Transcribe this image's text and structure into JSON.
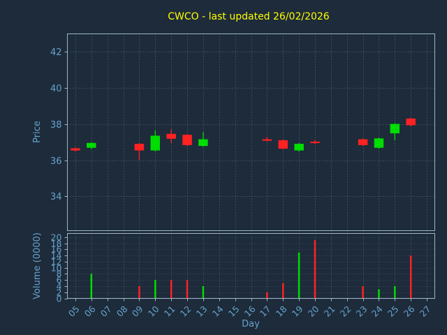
{
  "colors": {
    "background": "#1d2b3a",
    "title": "#ffff00",
    "tick_label": "#66a3cc",
    "axis_label": "#66a3cc",
    "spine": "#9fb6c9",
    "grid": "#8fa8bc",
    "up": "#00dd00",
    "down": "#ff2222"
  },
  "chart_data": {
    "type": "candlestick",
    "title": "CWCO - last updated 26/02/2026",
    "xlabel": "Day",
    "price_ylabel": "Price",
    "volume_ylabel": "Volume (0000)",
    "legend": "none",
    "grid": "dotted",
    "x_tick_labels": [
      "05",
      "06",
      "07",
      "08",
      "09",
      "10",
      "11",
      "12",
      "13",
      "14",
      "15",
      "16",
      "17",
      "18",
      "19",
      "20",
      "21",
      "22",
      "23",
      "24",
      "25",
      "26",
      "27"
    ],
    "x_range": [
      4.5,
      27.5
    ],
    "price_ticks": [
      34,
      36,
      38,
      40,
      42
    ],
    "price_range": [
      32.1,
      43.0
    ],
    "volume_ticks": [
      0,
      2,
      4,
      6,
      8,
      10,
      12,
      14,
      16,
      18,
      20
    ],
    "volume_range": [
      0,
      21.2
    ],
    "candles": [
      {
        "day": 5,
        "open": 36.65,
        "high": 36.72,
        "low": 36.5,
        "close": 36.55,
        "volume": 0
      },
      {
        "day": 6,
        "open": 36.7,
        "high": 37.0,
        "low": 36.62,
        "close": 36.95,
        "volume": 8
      },
      {
        "day": 9,
        "open": 36.9,
        "high": 36.95,
        "low": 36.0,
        "close": 36.55,
        "volume": 4
      },
      {
        "day": 10,
        "open": 36.55,
        "high": 37.65,
        "low": 36.5,
        "close": 37.35,
        "volume": 6
      },
      {
        "day": 11,
        "open": 37.45,
        "high": 37.7,
        "low": 36.95,
        "close": 37.2,
        "volume": 6
      },
      {
        "day": 12,
        "open": 37.4,
        "high": 37.45,
        "low": 36.8,
        "close": 36.85,
        "volume": 6
      },
      {
        "day": 13,
        "open": 36.8,
        "high": 37.55,
        "low": 36.75,
        "close": 37.15,
        "volume": 4
      },
      {
        "day": 17,
        "open": 37.15,
        "high": 37.3,
        "low": 37.05,
        "close": 37.1,
        "volume": 2
      },
      {
        "day": 18,
        "open": 37.1,
        "high": 37.15,
        "low": 36.6,
        "close": 36.65,
        "volume": 5
      },
      {
        "day": 19,
        "open": 36.55,
        "high": 36.95,
        "low": 36.5,
        "close": 36.9,
        "volume": 15
      },
      {
        "day": 20,
        "open": 37.02,
        "high": 37.12,
        "low": 36.9,
        "close": 36.98,
        "volume": 19
      },
      {
        "day": 23,
        "open": 37.15,
        "high": 37.2,
        "low": 36.8,
        "close": 36.85,
        "volume": 4
      },
      {
        "day": 24,
        "open": 36.7,
        "high": 37.25,
        "low": 36.65,
        "close": 37.2,
        "volume": 3
      },
      {
        "day": 25,
        "open": 37.5,
        "high": 38.05,
        "low": 37.1,
        "close": 38.0,
        "volume": 4
      },
      {
        "day": 26,
        "open": 38.3,
        "high": 38.35,
        "low": 37.88,
        "close": 37.95,
        "volume": 14
      }
    ]
  }
}
